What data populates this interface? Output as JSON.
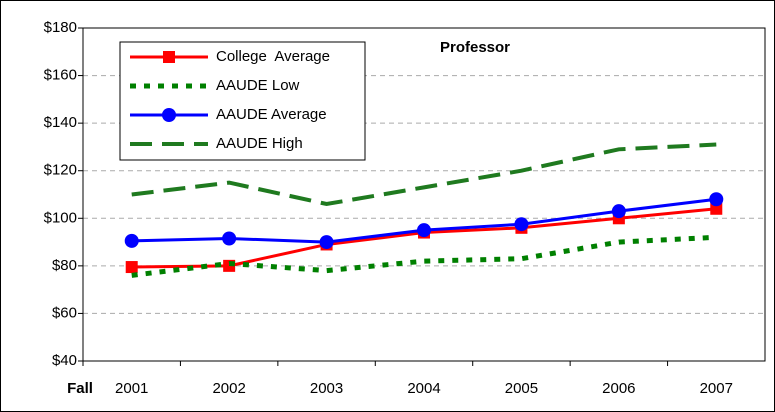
{
  "chart_data": {
    "type": "line",
    "title": "Professor",
    "x_label": "Fall",
    "categories": [
      "2001",
      "2002",
      "2003",
      "2004",
      "2005",
      "2006",
      "2007"
    ],
    "series": [
      {
        "name": "College  Average",
        "color": "#ff0000",
        "marker": "square",
        "dash": "solid",
        "values": [
          79.5,
          80,
          89,
          94,
          96,
          100,
          104
        ]
      },
      {
        "name": "AAUDE Low",
        "color": "#008000",
        "marker": "none",
        "dash": "dotted",
        "values": [
          76,
          81,
          78,
          82,
          83,
          90,
          92
        ]
      },
      {
        "name": "AAUDE Average",
        "color": "#0000ff",
        "marker": "circle",
        "dash": "solid",
        "values": [
          90.5,
          91.5,
          90,
          95,
          97.5,
          103,
          108
        ]
      },
      {
        "name": "AAUDE High",
        "color": "#1f7a1f",
        "marker": "none",
        "dash": "dashed",
        "values": [
          110,
          115,
          106,
          113,
          120,
          129,
          131
        ]
      }
    ],
    "ylim": [
      40,
      180
    ],
    "yticks": [
      {
        "value": 40,
        "label": "$40"
      },
      {
        "value": 60,
        "label": "$60"
      },
      {
        "value": 80,
        "label": "$80"
      },
      {
        "value": 100,
        "label": "$100"
      },
      {
        "value": 120,
        "label": "$120"
      },
      {
        "value": 140,
        "label": "$140"
      },
      {
        "value": 160,
        "label": "$160"
      },
      {
        "value": 180,
        "label": "$180"
      }
    ],
    "grid": true,
    "legend": "upper left"
  }
}
